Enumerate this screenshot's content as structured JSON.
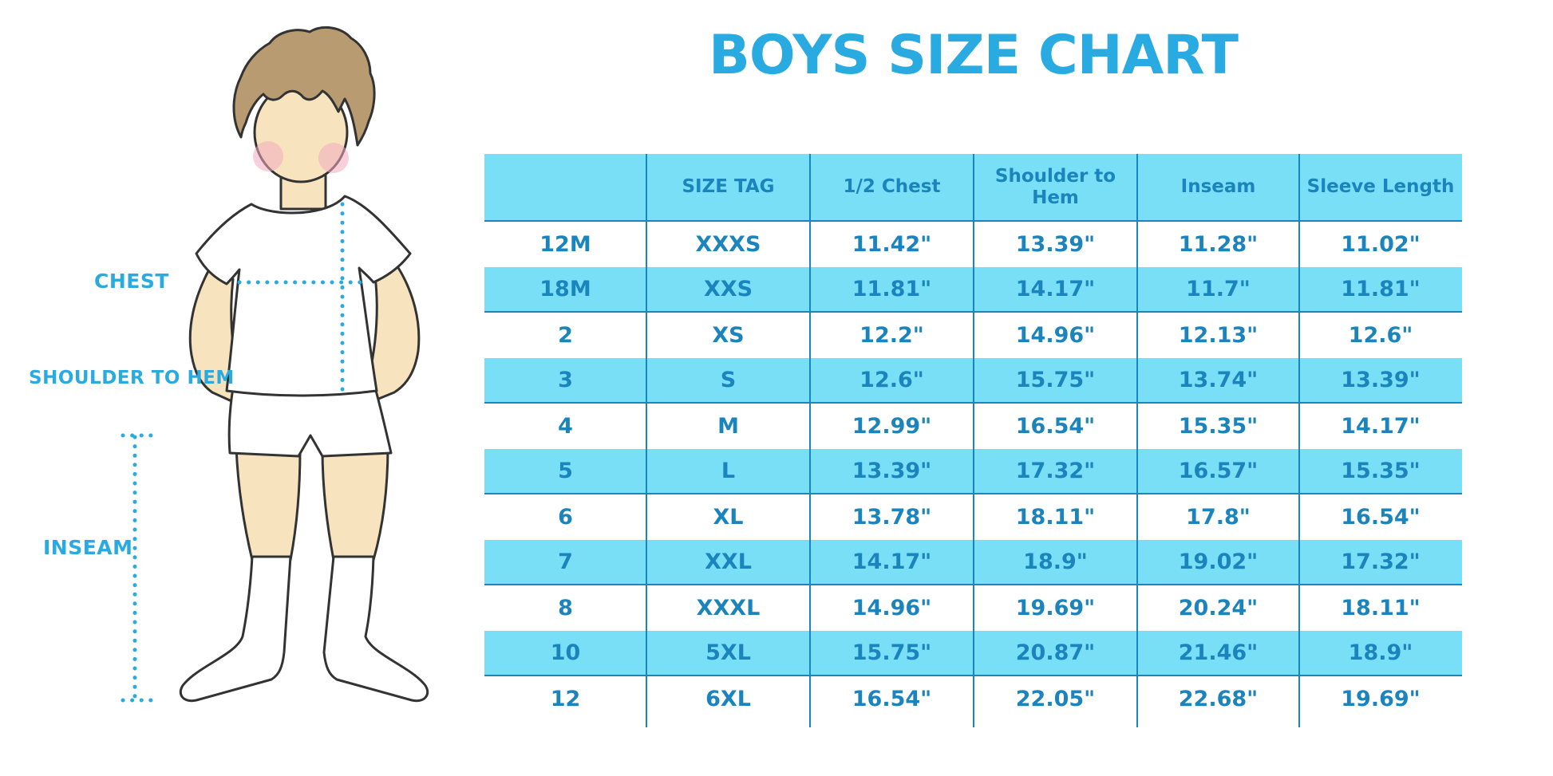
{
  "title": "BOYS SIZE CHART",
  "colors": {
    "accent": "#29ABE2",
    "table_text": "#1B84BD",
    "stripe": "#79DFF6",
    "rule": "#1787BD",
    "skin": "#F7E4BE",
    "hair": "#B99B72",
    "cheek": "#F2A9BE",
    "outline": "#333333"
  },
  "diagram": {
    "labels": {
      "chest": "CHEST",
      "shoulder_to_hem": "SHOULDER TO HEM",
      "inseam": "INSEAM"
    }
  },
  "chart_data": {
    "type": "table",
    "title": "BOYS SIZE CHART",
    "columns": [
      "",
      "SIZE TAG",
      "1/2 Chest",
      "Shoulder to Hem",
      "Inseam",
      "Sleeve Length"
    ],
    "rows": [
      [
        "12M",
        "XXXS",
        "11.42\"",
        "13.39\"",
        "11.28\"",
        "11.02\""
      ],
      [
        "18M",
        "XXS",
        "11.81\"",
        "14.17\"",
        "11.7\"",
        "11.81\""
      ],
      [
        "2",
        "XS",
        "12.2\"",
        "14.96\"",
        "12.13\"",
        "12.6\""
      ],
      [
        "3",
        "S",
        "12.6\"",
        "15.75\"",
        "13.74\"",
        "13.39\""
      ],
      [
        "4",
        "M",
        "12.99\"",
        "16.54\"",
        "15.35\"",
        "14.17\""
      ],
      [
        "5",
        "L",
        "13.39\"",
        "17.32\"",
        "16.57\"",
        "15.35\""
      ],
      [
        "6",
        "XL",
        "13.78\"",
        "18.11\"",
        "17.8\"",
        "16.54\""
      ],
      [
        "7",
        "XXL",
        "14.17\"",
        "18.9\"",
        "19.02\"",
        "17.32\""
      ],
      [
        "8",
        "XXXL",
        "14.96\"",
        "19.69\"",
        "20.24\"",
        "18.11\""
      ],
      [
        "10",
        "5XL",
        "15.75\"",
        "20.87\"",
        "21.46\"",
        "18.9\""
      ],
      [
        "12",
        "6XL",
        "16.54\"",
        "22.05\"",
        "22.68\"",
        "19.69\""
      ]
    ],
    "layout": {
      "striped_rows": "alternating white / light-cyan starting white",
      "header_background": "light-cyan",
      "grid": "vertical column separators, rule under header and under each cyan stripe"
    }
  }
}
